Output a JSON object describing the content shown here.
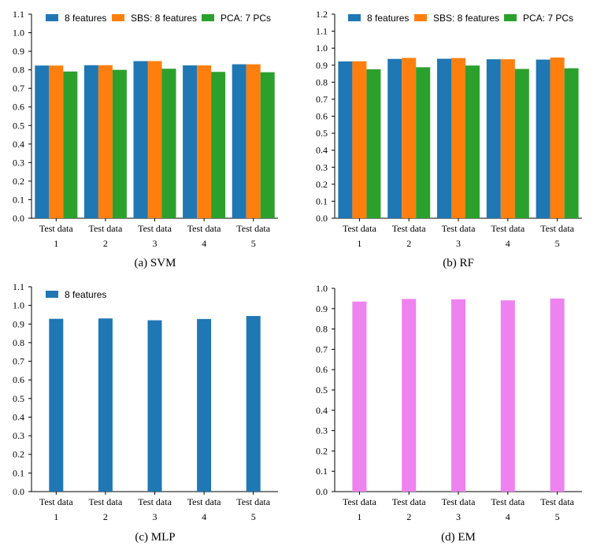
{
  "chart_data": [
    {
      "id": "svm",
      "type": "bar",
      "caption": "(a) SVM",
      "categories": [
        "Test data\n1",
        "Test data\n2",
        "Test data\n3",
        "Test data\n4",
        "Test data\n5"
      ],
      "series": [
        {
          "name": "8 features",
          "color": "#1f77b4",
          "values": [
            0.823,
            0.825,
            0.847,
            0.824,
            0.83
          ]
        },
        {
          "name": "SBS: 8 features",
          "color": "#ff7f0e",
          "values": [
            0.823,
            0.825,
            0.847,
            0.824,
            0.83
          ]
        },
        {
          "name": "PCA: 7 PCs",
          "color": "#2ca02c",
          "values": [
            0.791,
            0.8,
            0.806,
            0.789,
            0.787
          ]
        }
      ],
      "ylim": [
        0,
        1.1
      ],
      "yticks": [
        "0.0",
        "0.1",
        "0.2",
        "0.3",
        "0.4",
        "0.5",
        "0.6",
        "0.7",
        "0.8",
        "0.9",
        "1.0",
        "1.1"
      ],
      "legend": "top"
    },
    {
      "id": "rf",
      "type": "bar",
      "caption": "(b) RF",
      "categories": [
        "Test data\n1",
        "Test data\n2",
        "Test data\n3",
        "Test data\n4",
        "Test data\n5"
      ],
      "series": [
        {
          "name": "8 features",
          "color": "#1f77b4",
          "values": [
            0.922,
            0.937,
            0.938,
            0.935,
            0.933
          ]
        },
        {
          "name": "SBS: 8 features",
          "color": "#ff7f0e",
          "values": [
            0.923,
            0.943,
            0.942,
            0.935,
            0.945
          ]
        },
        {
          "name": "PCA: 7 PCs",
          "color": "#2ca02c",
          "values": [
            0.876,
            0.888,
            0.898,
            0.878,
            0.882
          ]
        }
      ],
      "ylim": [
        0,
        1.2
      ],
      "yticks": [
        "0.0",
        "0.1",
        "0.2",
        "0.3",
        "0.4",
        "0.5",
        "0.6",
        "0.7",
        "0.8",
        "0.9",
        "1.0",
        "1.1",
        "1.2"
      ],
      "legend": "top"
    },
    {
      "id": "mlp",
      "type": "bar",
      "caption": "(c) MLP",
      "categories": [
        "Test data\n1",
        "Test data\n2",
        "Test data\n3",
        "Test data\n4",
        "Test data\n5"
      ],
      "series": [
        {
          "name": "8 features",
          "color": "#1f77b4",
          "values": [
            0.928,
            0.93,
            0.92,
            0.927,
            0.943
          ]
        }
      ],
      "ylim": [
        0,
        1.1
      ],
      "yticks": [
        "0.0",
        "0.1",
        "0.2",
        "0.3",
        "0.4",
        "0.5",
        "0.6",
        "0.7",
        "0.8",
        "0.9",
        "1.0",
        "1.1"
      ],
      "legend": "top-left"
    },
    {
      "id": "em",
      "type": "bar",
      "caption": "(d) EM",
      "categories": [
        "Test data\n1",
        "Test data\n2",
        "Test data\n3",
        "Test data\n4",
        "Test data\n5"
      ],
      "series": [
        {
          "name": "",
          "color": "#ee82ee",
          "values": [
            0.935,
            0.948,
            0.946,
            0.941,
            0.95
          ]
        }
      ],
      "ylim": [
        0,
        1.0
      ],
      "yticks": [
        "0.0",
        "0.1",
        "0.2",
        "0.3",
        "0.4",
        "0.5",
        "0.6",
        "0.7",
        "0.8",
        "0.9",
        "1.0"
      ],
      "legend": "none"
    }
  ]
}
